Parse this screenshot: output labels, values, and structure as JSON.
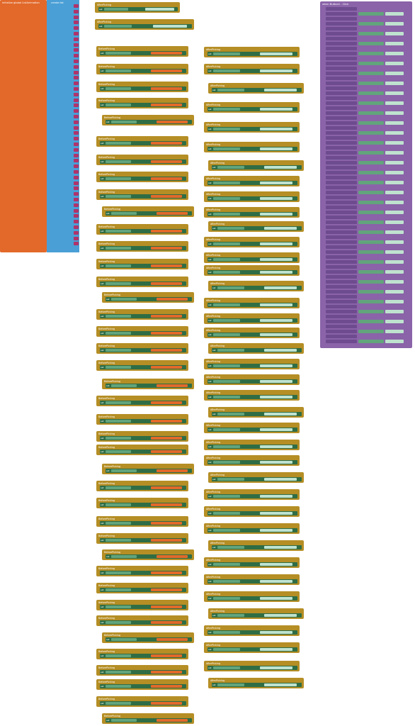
{
  "init": {
    "label": "initialize global ListAnimation",
    "to": "to"
  },
  "list": {
    "label": "create list"
  },
  "event": {
    "before": "BeforePicking",
    "after": "AfterPicking",
    "when": "when",
    "do": "do",
    "set": "set",
    "elements": "Elements",
    "to": "to",
    "get": "get global ListAnimation",
    "text": "Text",
    "selection": "Selection"
  },
  "click": {
    "label": "when Button1 . Click",
    "call": "call BluetoothClient1 . SendText",
    "text": "text"
  }
}
